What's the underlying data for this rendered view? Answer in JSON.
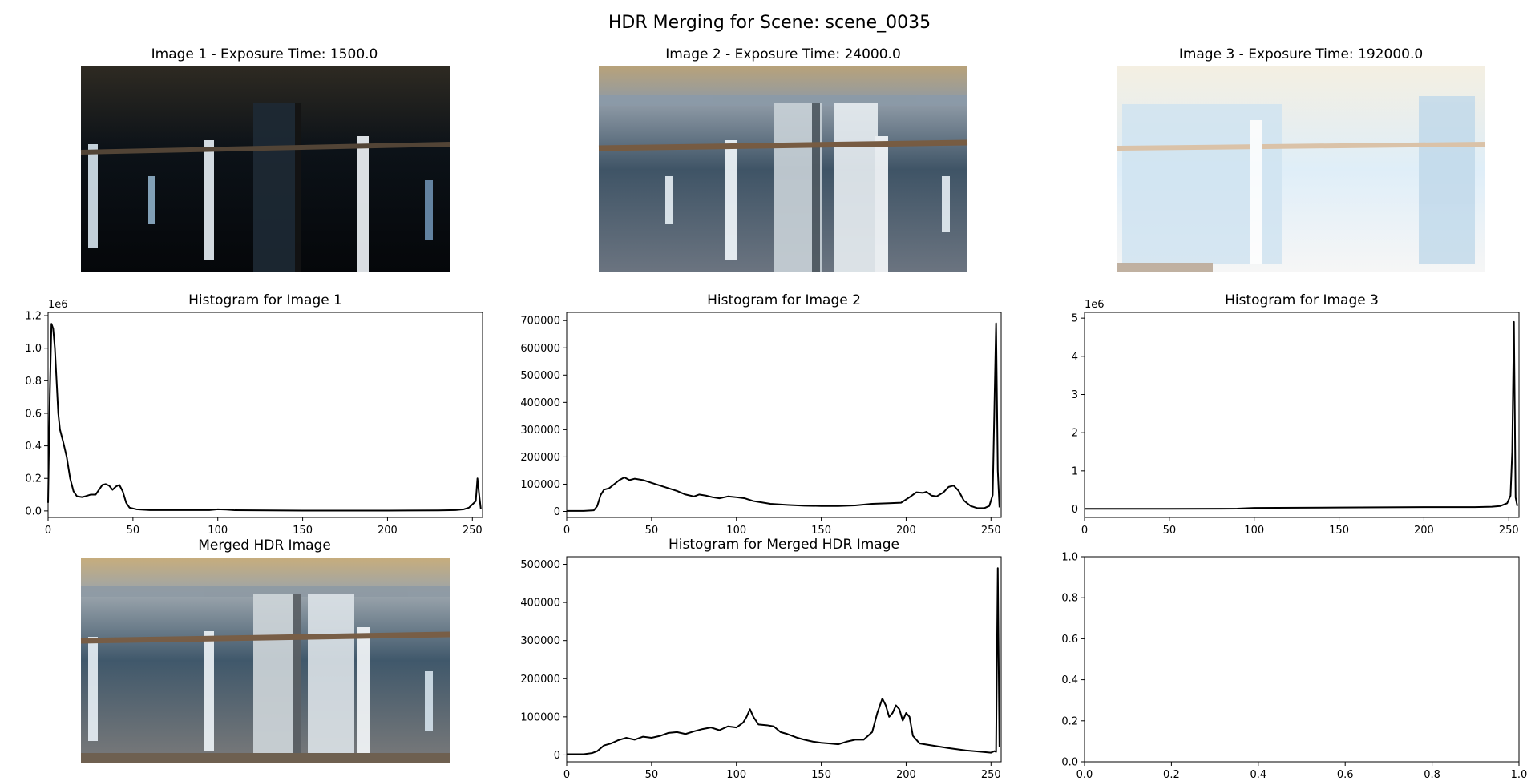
{
  "suptitle": "HDR Merging for Scene: scene_0035",
  "images": [
    {
      "title": "Image 1 - Exposure Time: 1500.0",
      "exposure": 1500.0,
      "brightness": "dark"
    },
    {
      "title": "Image 2 - Exposure Time: 24000.0",
      "exposure": 24000.0,
      "brightness": "normal"
    },
    {
      "title": "Image 3 - Exposure Time: 192000.0",
      "exposure": 192000.0,
      "brightness": "bright"
    },
    {
      "title": "Merged HDR Image",
      "brightness": "merged"
    }
  ],
  "colors": {
    "line": "#000000",
    "axes": "#000000",
    "background": "#ffffff"
  },
  "chart_data": [
    {
      "type": "line",
      "title": "Histogram for Image 1",
      "xlim": [
        0,
        256
      ],
      "ylim": [
        -0.04,
        1.22
      ],
      "offset_text": "1e6",
      "x_ticks": [
        0,
        50,
        100,
        150,
        200,
        250
      ],
      "y_ticks": [
        0.0,
        0.2,
        0.4,
        0.6,
        0.8,
        1.0,
        1.2
      ],
      "y_tick_labels": [
        "0.0",
        "0.2",
        "0.4",
        "0.6",
        "0.8",
        "1.0",
        "1.2"
      ],
      "series": [
        {
          "points": [
            [
              0,
              0.05
            ],
            [
              1,
              0.7
            ],
            [
              2,
              1.15
            ],
            [
              3,
              1.12
            ],
            [
              4,
              1.0
            ],
            [
              5,
              0.8
            ],
            [
              6,
              0.6
            ],
            [
              7,
              0.5
            ],
            [
              9,
              0.42
            ],
            [
              11,
              0.33
            ],
            [
              13,
              0.2
            ],
            [
              15,
              0.12
            ],
            [
              17,
              0.09
            ],
            [
              20,
              0.085
            ],
            [
              22,
              0.09
            ],
            [
              25,
              0.1
            ],
            [
              28,
              0.1
            ],
            [
              30,
              0.13
            ],
            [
              32,
              0.16
            ],
            [
              34,
              0.165
            ],
            [
              36,
              0.155
            ],
            [
              38,
              0.13
            ],
            [
              40,
              0.15
            ],
            [
              42,
              0.16
            ],
            [
              44,
              0.12
            ],
            [
              46,
              0.05
            ],
            [
              48,
              0.02
            ],
            [
              52,
              0.01
            ],
            [
              60,
              0.005
            ],
            [
              80,
              0.005
            ],
            [
              95,
              0.005
            ],
            [
              100,
              0.01
            ],
            [
              105,
              0.008
            ],
            [
              110,
              0.004
            ],
            [
              150,
              0.002
            ],
            [
              200,
              0.002
            ],
            [
              230,
              0.003
            ],
            [
              240,
              0.005
            ],
            [
              245,
              0.01
            ],
            [
              248,
              0.02
            ],
            [
              250,
              0.04
            ],
            [
              252,
              0.06
            ],
            [
              253,
              0.2
            ],
            [
              254,
              0.1
            ],
            [
              255,
              0.01
            ]
          ]
        }
      ]
    },
    {
      "type": "line",
      "title": "Histogram for Image 2",
      "xlim": [
        0,
        256
      ],
      "ylim": [
        -22000,
        730000
      ],
      "x_ticks": [
        0,
        50,
        100,
        150,
        200,
        250
      ],
      "y_ticks": [
        0,
        100000,
        200000,
        300000,
        400000,
        500000,
        600000,
        700000
      ],
      "y_tick_labels": [
        "0",
        "100000",
        "200000",
        "300000",
        "400000",
        "500000",
        "600000",
        "700000"
      ],
      "series": [
        {
          "points": [
            [
              0,
              2000
            ],
            [
              10,
              2000
            ],
            [
              16,
              4000
            ],
            [
              18,
              20000
            ],
            [
              20,
              60000
            ],
            [
              22,
              80000
            ],
            [
              25,
              85000
            ],
            [
              28,
              100000
            ],
            [
              31,
              115000
            ],
            [
              34,
              125000
            ],
            [
              37,
              115000
            ],
            [
              40,
              120000
            ],
            [
              45,
              115000
            ],
            [
              50,
              105000
            ],
            [
              55,
              95000
            ],
            [
              60,
              85000
            ],
            [
              65,
              75000
            ],
            [
              70,
              62000
            ],
            [
              75,
              55000
            ],
            [
              78,
              62000
            ],
            [
              82,
              58000
            ],
            [
              86,
              52000
            ],
            [
              90,
              48000
            ],
            [
              95,
              55000
            ],
            [
              100,
              52000
            ],
            [
              105,
              48000
            ],
            [
              110,
              38000
            ],
            [
              115,
              33000
            ],
            [
              120,
              28000
            ],
            [
              130,
              24000
            ],
            [
              140,
              21000
            ],
            [
              150,
              20000
            ],
            [
              160,
              20000
            ],
            [
              170,
              22000
            ],
            [
              180,
              28000
            ],
            [
              190,
              30000
            ],
            [
              197,
              32000
            ],
            [
              202,
              52000
            ],
            [
              206,
              70000
            ],
            [
              210,
              68000
            ],
            [
              212,
              72000
            ],
            [
              215,
              58000
            ],
            [
              218,
              55000
            ],
            [
              222,
              70000
            ],
            [
              225,
              90000
            ],
            [
              228,
              95000
            ],
            [
              231,
              75000
            ],
            [
              234,
              40000
            ],
            [
              238,
              20000
            ],
            [
              242,
              12000
            ],
            [
              246,
              12000
            ],
            [
              249,
              20000
            ],
            [
              251,
              60000
            ],
            [
              253,
              690000
            ],
            [
              254,
              150000
            ],
            [
              255,
              15000
            ]
          ]
        }
      ]
    },
    {
      "type": "line",
      "title": "Histogram for Image 3",
      "xlim": [
        0,
        256
      ],
      "ylim": [
        -0.22,
        5.15
      ],
      "offset_text": "1e6",
      "x_ticks": [
        0,
        50,
        100,
        150,
        200,
        250
      ],
      "y_ticks": [
        0,
        1,
        2,
        3,
        4,
        5
      ],
      "y_tick_labels": [
        "0",
        "1",
        "2",
        "3",
        "4",
        "5"
      ],
      "series": [
        {
          "points": [
            [
              0,
              0.005
            ],
            [
              50,
              0.005
            ],
            [
              90,
              0.01
            ],
            [
              100,
              0.03
            ],
            [
              150,
              0.04
            ],
            [
              200,
              0.05
            ],
            [
              230,
              0.05
            ],
            [
              240,
              0.06
            ],
            [
              245,
              0.08
            ],
            [
              249,
              0.15
            ],
            [
              251,
              0.35
            ],
            [
              252,
              1.5
            ],
            [
              253,
              4.9
            ],
            [
              254,
              0.3
            ],
            [
              255,
              0.08
            ]
          ]
        }
      ]
    },
    {
      "type": "line",
      "title": "Histogram for Merged HDR Image",
      "xlim": [
        0,
        256
      ],
      "ylim": [
        -18000,
        520000
      ],
      "x_ticks": [
        0,
        50,
        100,
        150,
        200,
        250
      ],
      "y_ticks": [
        0,
        100000,
        200000,
        300000,
        400000,
        500000
      ],
      "y_tick_labels": [
        "0",
        "100000",
        "200000",
        "300000",
        "400000",
        "500000"
      ],
      "series": [
        {
          "points": [
            [
              0,
              2000
            ],
            [
              10,
              2000
            ],
            [
              15,
              5000
            ],
            [
              18,
              10000
            ],
            [
              22,
              25000
            ],
            [
              26,
              30000
            ],
            [
              30,
              38000
            ],
            [
              35,
              45000
            ],
            [
              40,
              40000
            ],
            [
              45,
              48000
            ],
            [
              50,
              45000
            ],
            [
              55,
              50000
            ],
            [
              60,
              58000
            ],
            [
              65,
              60000
            ],
            [
              70,
              55000
            ],
            [
              75,
              62000
            ],
            [
              80,
              68000
            ],
            [
              85,
              72000
            ],
            [
              90,
              65000
            ],
            [
              95,
              75000
            ],
            [
              100,
              72000
            ],
            [
              104,
              85000
            ],
            [
              106,
              100000
            ],
            [
              108,
              120000
            ],
            [
              110,
              100000
            ],
            [
              113,
              80000
            ],
            [
              118,
              78000
            ],
            [
              122,
              75000
            ],
            [
              126,
              60000
            ],
            [
              130,
              55000
            ],
            [
              136,
              45000
            ],
            [
              140,
              40000
            ],
            [
              145,
              35000
            ],
            [
              150,
              32000
            ],
            [
              155,
              30000
            ],
            [
              160,
              28000
            ],
            [
              165,
              35000
            ],
            [
              170,
              40000
            ],
            [
              175,
              40000
            ],
            [
              180,
              60000
            ],
            [
              183,
              110000
            ],
            [
              186,
              148000
            ],
            [
              188,
              130000
            ],
            [
              190,
              100000
            ],
            [
              192,
              110000
            ],
            [
              194,
              130000
            ],
            [
              196,
              120000
            ],
            [
              198,
              90000
            ],
            [
              200,
              110000
            ],
            [
              202,
              100000
            ],
            [
              204,
              50000
            ],
            [
              208,
              30000
            ],
            [
              215,
              25000
            ],
            [
              225,
              18000
            ],
            [
              235,
              12000
            ],
            [
              245,
              8000
            ],
            [
              250,
              6000
            ],
            [
              252,
              10000
            ],
            [
              253,
              8000
            ],
            [
              254,
              490000
            ],
            [
              255,
              20000
            ]
          ]
        }
      ]
    },
    {
      "type": "line",
      "title": "",
      "xlim": [
        0,
        1
      ],
      "ylim": [
        0,
        1
      ],
      "x_ticks": [
        0.0,
        0.2,
        0.4,
        0.6,
        0.8,
        1.0
      ],
      "x_tick_labels": [
        "0.0",
        "0.2",
        "0.4",
        "0.6",
        "0.8",
        "1.0"
      ],
      "y_ticks": [
        0.0,
        0.2,
        0.4,
        0.6,
        0.8,
        1.0
      ],
      "y_tick_labels": [
        "0.0",
        "0.2",
        "0.4",
        "0.6",
        "0.8",
        "1.0"
      ],
      "series": []
    }
  ]
}
